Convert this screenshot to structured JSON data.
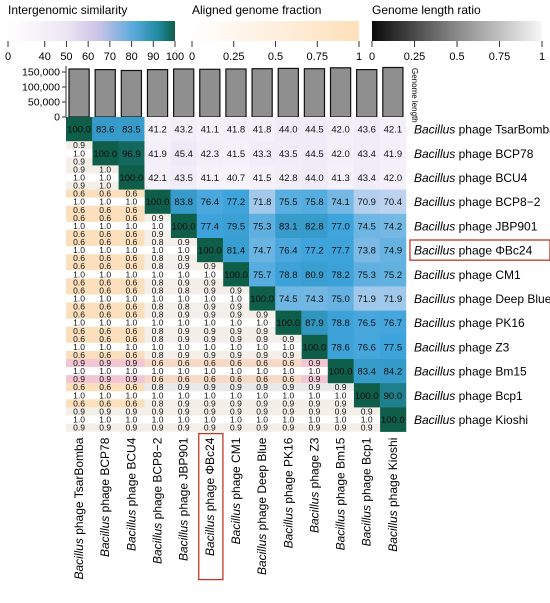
{
  "legends": {
    "similarity": {
      "title": "Intergenomic similarity",
      "ticks": [
        "0",
        "40",
        "50",
        "60",
        "70",
        "80",
        "90",
        "100"
      ]
    },
    "fraction": {
      "title": "Aligned genome fraction",
      "ticks": [
        "0",
        "0.25",
        "0.5",
        "0.75",
        "1"
      ]
    },
    "length": {
      "title": "Genome length ratio",
      "ticks": [
        "0",
        "0.25",
        "0.5",
        "0.75",
        "1"
      ]
    }
  },
  "colors": {
    "similarity_low": "#f1effa",
    "similarity_mid": "#3ea4dc",
    "similarity_high": "#0f5e49",
    "fraction_high": "#fde6c8",
    "length_dark": "#111111",
    "length_light": "#f2f2f2",
    "bar_fill": "#8f8f8f",
    "highlight_border": "#c0392b"
  },
  "chart_data": {
    "type": "heatmap",
    "genus": "Bacillus",
    "species_word": "phage",
    "phages": [
      "TsarBomba",
      "BCP78",
      "BCU4",
      "BCP8−2",
      "JBP901",
      "ΦBc24",
      "CM1",
      "Deep Blue",
      "PK16",
      "Z3",
      "Bm15",
      "Bcp1",
      "Kioshi"
    ],
    "highlighted": "ΦBc24",
    "genome_length": {
      "label": "Genome length",
      "ticks": [
        "0",
        "50,000",
        "100,000",
        "150,000"
      ],
      "ylim": [
        0,
        170000
      ],
      "values": [
        160000,
        158000,
        155000,
        158000,
        160000,
        159000,
        160000,
        161000,
        162000,
        161000,
        164000,
        158000,
        165000
      ]
    },
    "similarity": [
      [
        "100.0",
        "83.6",
        "83.5",
        "41.2",
        "43.2",
        "41.1",
        "41.8",
        "41.8",
        "44.0",
        "44.5",
        "42.0",
        "43.6",
        "42.1"
      ],
      [
        "",
        "100.0",
        "96.9",
        "41.9",
        "45.4",
        "42.3",
        "41.5",
        "43.3",
        "43.5",
        "44.5",
        "42.0",
        "43.4",
        "41.9"
      ],
      [
        "",
        "",
        "100.0",
        "42.1",
        "43.5",
        "41.1",
        "40.7",
        "41.5",
        "42.8",
        "44.0",
        "41.3",
        "43.4",
        "42.0"
      ],
      [
        "",
        "",
        "",
        "100.0",
        "83.8",
        "76.4",
        "77.2",
        "71.8",
        "75.5",
        "75.8",
        "74.1",
        "70.9",
        "70.4"
      ],
      [
        "",
        "",
        "",
        "",
        "100.0",
        "77.4",
        "79.5",
        "75.3",
        "83.1",
        "82.8",
        "77.0",
        "74.5",
        "74.2"
      ],
      [
        "",
        "",
        "",
        "",
        "",
        "100.0",
        "81.4",
        "74.7",
        "76.4",
        "77.2",
        "77.7",
        "73.8",
        "74.9"
      ],
      [
        "",
        "",
        "",
        "",
        "",
        "",
        "100.0",
        "75.7",
        "78.8",
        "80.9",
        "78.2",
        "75.3",
        "75.2"
      ],
      [
        "",
        "",
        "",
        "",
        "",
        "",
        "",
        "100.0",
        "74.5",
        "74.3",
        "75.0",
        "71.9",
        "71.9"
      ],
      [
        "",
        "",
        "",
        "",
        "",
        "",
        "",
        "",
        "100.0",
        "87.9",
        "78.8",
        "76.5",
        "76.7"
      ],
      [
        "",
        "",
        "",
        "",
        "",
        "",
        "",
        "",
        "",
        "100.0",
        "78.6",
        "76.6",
        "77.5"
      ],
      [
        "",
        "",
        "",
        "",
        "",
        "",
        "",
        "",
        "",
        "",
        "100.0",
        "83.4",
        "84.2"
      ],
      [
        "",
        "",
        "",
        "",
        "",
        "",
        "",
        "",
        "",
        "",
        "",
        "100.0",
        "90.0"
      ],
      [
        "",
        "",
        "",
        "",
        "",
        "",
        "",
        "",
        "",
        "",
        "",
        "",
        "100.0"
      ]
    ],
    "lower": [
      [],
      [
        [
          "0.9",
          "1.0",
          "0.9"
        ]
      ],
      [
        [
          "0.9",
          "1.0",
          "0.9"
        ],
        [
          "1.0",
          "1.0",
          "1.0"
        ]
      ],
      [
        [
          "0.6",
          "1.0",
          "0.6"
        ],
        [
          "0.6",
          "1.0",
          "0.6"
        ],
        [
          "0.6",
          "1.0",
          "0.6"
        ]
      ],
      [
        [
          "0.6",
          "1.0",
          "0.6"
        ],
        [
          "0.6",
          "1.0",
          "0.6"
        ],
        [
          "0.6",
          "1.0",
          "0.6"
        ],
        [
          "0.9",
          "1.0",
          "0.9"
        ]
      ],
      [
        [
          "0.6",
          "1.0",
          "0.6"
        ],
        [
          "0.6",
          "1.0",
          "0.6"
        ],
        [
          "0.6",
          "1.0",
          "0.6"
        ],
        [
          "0.8",
          "1.0",
          "0.8"
        ],
        [
          "0.9",
          "1.0",
          "0.9"
        ]
      ],
      [
        [
          "0.6",
          "1.0",
          "0.6"
        ],
        [
          "0.6",
          "1.0",
          "0.6"
        ],
        [
          "0.6",
          "1.0",
          "0.6"
        ],
        [
          "0.8",
          "1.0",
          "0.8"
        ],
        [
          "0.9",
          "1.0",
          "0.9"
        ],
        [
          "0.9",
          "1.0",
          "0.9"
        ]
      ],
      [
        [
          "0.6",
          "1.0",
          "0.6"
        ],
        [
          "0.6",
          "1.0",
          "0.6"
        ],
        [
          "0.6",
          "1.0",
          "0.6"
        ],
        [
          "0.8",
          "1.0",
          "0.8"
        ],
        [
          "0.8",
          "1.0",
          "0.8"
        ],
        [
          "0.9",
          "1.0",
          "0.9"
        ],
        [
          "0.9",
          "1.0",
          "0.9"
        ]
      ],
      [
        [
          "0.6",
          "1.0",
          "0.6"
        ],
        [
          "0.6",
          "1.0",
          "0.6"
        ],
        [
          "0.6",
          "1.0",
          "0.6"
        ],
        [
          "0.8",
          "1.0",
          "0.8"
        ],
        [
          "0.9",
          "1.0",
          "0.9"
        ],
        [
          "0.9",
          "1.0",
          "0.9"
        ],
        [
          "0.9",
          "1.0",
          "0.9"
        ],
        [
          "0.9",
          "1.0",
          "0.9"
        ]
      ],
      [
        [
          "0.6",
          "1.0",
          "0.6"
        ],
        [
          "0.6",
          "1.0",
          "0.6"
        ],
        [
          "0.6",
          "1.0",
          "0.6"
        ],
        [
          "0.8",
          "1.0",
          "0.8"
        ],
        [
          "0.9",
          "1.0",
          "0.9"
        ],
        [
          "0.9",
          "1.0",
          "0.9"
        ],
        [
          "0.9",
          "1.0",
          "0.9"
        ],
        [
          "0.9",
          "1.0",
          "0.9"
        ],
        [
          "0.9",
          "1.0",
          "0.9"
        ]
      ],
      [
        [
          "0.9",
          "1.0",
          "0.9"
        ],
        [
          "0.9",
          "1.0",
          "0.9"
        ],
        [
          "0.9",
          "1.0",
          "0.9"
        ],
        [
          "0.6",
          "1.0",
          "0.6"
        ],
        [
          "0.6",
          "1.0",
          "0.6"
        ],
        [
          "0.6",
          "1.0",
          "0.6"
        ],
        [
          "0.6",
          "1.0",
          "0.6"
        ],
        [
          "0.6",
          "1.0",
          "0.6"
        ],
        [
          "0.6",
          "1.0",
          "0.6"
        ],
        [
          "0.9",
          "1.0",
          "0.9"
        ]
      ],
      [
        [
          "0.6",
          "1.0",
          "0.6"
        ],
        [
          "0.6",
          "1.0",
          "0.6"
        ],
        [
          "0.6",
          "1.0",
          "0.6"
        ],
        [
          "0.8",
          "1.0",
          "0.8"
        ],
        [
          "0.9",
          "1.0",
          "0.9"
        ],
        [
          "0.9",
          "1.0",
          "0.9"
        ],
        [
          "0.9",
          "1.0",
          "0.9"
        ],
        [
          "0.9",
          "1.0",
          "0.9"
        ],
        [
          "0.9",
          "1.0",
          "0.9"
        ],
        [
          "0.9",
          "1.0",
          "0.9"
        ],
        [
          "0.9",
          "1.0",
          "0.9"
        ]
      ],
      [
        [
          "0.9",
          "1.0",
          "0.9"
        ],
        [
          "0.9",
          "1.0",
          "0.9"
        ],
        [
          "0.9",
          "1.0",
          "0.9"
        ],
        [
          "0.9",
          "1.0",
          "0.9"
        ],
        [
          "0.9",
          "1.0",
          "0.9"
        ],
        [
          "0.9",
          "1.0",
          "0.9"
        ],
        [
          "0.9",
          "1.0",
          "0.9"
        ],
        [
          "0.9",
          "1.0",
          "0.9"
        ],
        [
          "0.9",
          "1.0",
          "0.9"
        ],
        [
          "0.9",
          "1.0",
          "0.9"
        ],
        [
          "0.9",
          "1.0",
          "0.9"
        ],
        [
          "0.9",
          "1.0",
          "0.9"
        ]
      ]
    ]
  }
}
